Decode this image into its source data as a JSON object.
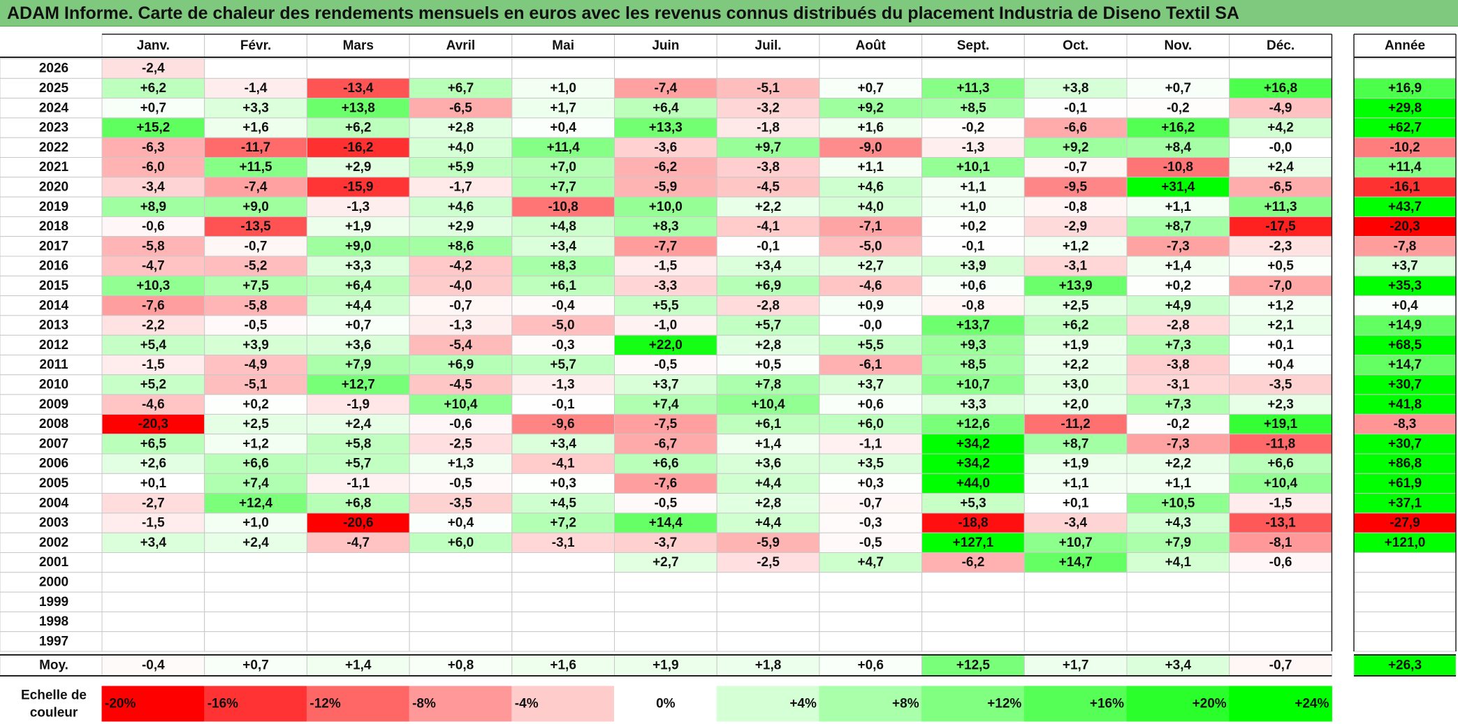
{
  "title": "ADAM Informe. Carte de chaleur des rendements mensuels en euros avec les revenus connus distribués du placement Industria de Diseno Textil SA",
  "colors": {
    "negative_max": "#ff0000",
    "neutral": "#ffffff",
    "positive_max": "#00ff00",
    "title_bg": "#7fc97f"
  },
  "chart_data": {
    "type": "heatmap",
    "title": "ADAM Informe. Carte de chaleur des rendements mensuels en euros avec les revenus connus distribués du placement Industria de Diseno Textil SA",
    "months": [
      "Janv.",
      "Févr.",
      "Mars",
      "Avril",
      "Mai",
      "Juin",
      "Juil.",
      "Août",
      "Sept.",
      "Oct.",
      "Nov.",
      "Déc."
    ],
    "annual_label": "Année",
    "years": [
      "2026",
      "2025",
      "2024",
      "2023",
      "2022",
      "2021",
      "2020",
      "2019",
      "2018",
      "2017",
      "2016",
      "2015",
      "2014",
      "2013",
      "2012",
      "2011",
      "2010",
      "2009",
      "2008",
      "2007",
      "2006",
      "2005",
      "2004",
      "2003",
      "2002",
      "2001",
      "2000",
      "1999",
      "1998",
      "1997"
    ],
    "values": [
      [
        "-2,4",
        "",
        "",
        "",
        "",
        "",
        "",
        "",
        "",
        "",
        "",
        ""
      ],
      [
        "+6,2",
        "-1,4",
        "-13,4",
        "+6,7",
        "+1,0",
        "-7,4",
        "-5,1",
        "+0,7",
        "+11,3",
        "+3,8",
        "+0,7",
        "+16,8"
      ],
      [
        "+0,7",
        "+3,3",
        "+13,8",
        "-6,5",
        "+1,7",
        "+6,4",
        "-3,2",
        "+9,2",
        "+8,5",
        "-0,1",
        "-0,2",
        "-4,9"
      ],
      [
        "+15,2",
        "+1,6",
        "+6,2",
        "+2,8",
        "+0,4",
        "+13,3",
        "-1,8",
        "+1,6",
        "-0,2",
        "-6,6",
        "+16,2",
        "+4,2"
      ],
      [
        "-6,3",
        "-11,7",
        "-16,2",
        "+4,0",
        "+11,4",
        "-3,6",
        "+9,7",
        "-9,0",
        "-1,3",
        "+9,2",
        "+8,4",
        "-0,0"
      ],
      [
        "-6,0",
        "+11,5",
        "+2,9",
        "+5,9",
        "+7,0",
        "-6,2",
        "-3,8",
        "+1,1",
        "+10,1",
        "-0,7",
        "-10,8",
        "+2,4"
      ],
      [
        "-3,4",
        "-7,4",
        "-15,9",
        "-1,7",
        "+7,7",
        "-5,9",
        "-4,5",
        "+4,6",
        "+1,1",
        "-9,5",
        "+31,4",
        "-6,5"
      ],
      [
        "+8,9",
        "+9,0",
        "-1,3",
        "+4,6",
        "-10,8",
        "+10,0",
        "+2,2",
        "+4,0",
        "+1,0",
        "-0,8",
        "+1,1",
        "+11,3"
      ],
      [
        "-0,6",
        "-13,5",
        "+1,9",
        "+2,9",
        "+4,8",
        "+8,3",
        "-4,1",
        "-7,1",
        "+0,2",
        "-2,9",
        "+8,7",
        "-17,5"
      ],
      [
        "-5,8",
        "-0,7",
        "+9,0",
        "+8,6",
        "+3,4",
        "-7,7",
        "-0,1",
        "-5,0",
        "-0,1",
        "+1,2",
        "-7,3",
        "-2,3"
      ],
      [
        "-4,7",
        "-5,2",
        "+3,3",
        "-4,2",
        "+8,3",
        "-1,5",
        "+3,4",
        "+2,7",
        "+3,9",
        "-3,1",
        "+1,4",
        "+0,5"
      ],
      [
        "+10,3",
        "+7,5",
        "+6,4",
        "-4,0",
        "+6,1",
        "-3,3",
        "+6,9",
        "-4,6",
        "+0,6",
        "+13,9",
        "+0,2",
        "-7,0"
      ],
      [
        "-7,6",
        "-5,8",
        "+4,4",
        "-0,7",
        "-0,4",
        "+5,5",
        "-2,8",
        "+0,9",
        "-0,8",
        "+2,5",
        "+4,9",
        "+1,2"
      ],
      [
        "-2,2",
        "-0,5",
        "+0,7",
        "-1,3",
        "-5,0",
        "-1,0",
        "+5,7",
        "-0,0",
        "+13,7",
        "+6,2",
        "-2,8",
        "+2,1"
      ],
      [
        "+5,4",
        "+3,9",
        "+3,6",
        "-5,4",
        "-0,3",
        "+22,0",
        "+2,8",
        "+5,5",
        "+9,3",
        "+1,9",
        "+7,3",
        "+0,1"
      ],
      [
        "-1,5",
        "-4,9",
        "+7,9",
        "+6,9",
        "+5,7",
        "-0,5",
        "+0,5",
        "-6,1",
        "+8,5",
        "+2,2",
        "-3,8",
        "+0,4"
      ],
      [
        "+5,2",
        "-5,1",
        "+12,7",
        "-4,5",
        "-1,3",
        "+3,7",
        "+7,8",
        "+3,7",
        "+10,7",
        "+3,0",
        "-3,1",
        "-3,5"
      ],
      [
        "-4,6",
        "+0,2",
        "-1,9",
        "+10,4",
        "-0,1",
        "+7,4",
        "+10,4",
        "+0,6",
        "+3,3",
        "+2,0",
        "+7,3",
        "+2,3"
      ],
      [
        "-20,3",
        "+2,5",
        "+2,4",
        "-0,6",
        "-9,6",
        "-7,5",
        "+6,1",
        "+6,0",
        "+12,6",
        "-11,2",
        "-0,2",
        "+19,1"
      ],
      [
        "+6,5",
        "+1,2",
        "+5,8",
        "-2,5",
        "+3,4",
        "-6,7",
        "+1,4",
        "-1,1",
        "+34,2",
        "+8,7",
        "-7,3",
        "-11,8"
      ],
      [
        "+2,6",
        "+6,6",
        "+5,7",
        "+1,3",
        "-4,1",
        "+6,6",
        "+3,6",
        "+3,5",
        "+34,2",
        "+1,9",
        "+2,2",
        "+6,6"
      ],
      [
        "+0,1",
        "+7,4",
        "-1,1",
        "-0,5",
        "+0,3",
        "-7,6",
        "+4,4",
        "+0,3",
        "+44,0",
        "+1,1",
        "+1,1",
        "+10,4"
      ],
      [
        "-2,7",
        "+12,4",
        "+6,8",
        "-3,5",
        "+4,5",
        "-0,5",
        "+2,8",
        "-0,7",
        "+5,3",
        "+0,1",
        "+10,5",
        "-1,5"
      ],
      [
        "-1,5",
        "+1,0",
        "-20,6",
        "+0,4",
        "+7,2",
        "+14,4",
        "+4,4",
        "-0,3",
        "-18,8",
        "-3,4",
        "+4,3",
        "-13,1"
      ],
      [
        "+3,4",
        "+2,4",
        "-4,7",
        "+6,0",
        "-3,1",
        "-3,7",
        "-5,9",
        "-0,5",
        "+127,1",
        "+10,7",
        "+7,9",
        "-8,1"
      ],
      [
        "",
        "",
        "",
        "",
        "",
        "+2,7",
        "-2,5",
        "+4,7",
        "-6,2",
        "+14,7",
        "+4,1",
        "-0,6"
      ],
      [
        "",
        "",
        "",
        "",
        "",
        "",
        "",
        "",
        "",
        "",
        "",
        ""
      ],
      [
        "",
        "",
        "",
        "",
        "",
        "",
        "",
        "",
        "",
        "",
        "",
        ""
      ],
      [
        "",
        "",
        "",
        "",
        "",
        "",
        "",
        "",
        "",
        "",
        "",
        ""
      ],
      [
        "",
        "",
        "",
        "",
        "",
        "",
        "",
        "",
        "",
        "",
        "",
        ""
      ]
    ],
    "annual": [
      "",
      "+16,9",
      "+29,8",
      "+62,7",
      "-10,2",
      "+11,4",
      "-16,1",
      "+43,7",
      "-20,3",
      "-7,8",
      "+3,7",
      "+35,3",
      "+0,4",
      "+14,9",
      "+68,5",
      "+14,7",
      "+30,7",
      "+41,8",
      "-8,3",
      "+30,7",
      "+86,8",
      "+61,9",
      "+37,1",
      "-27,9",
      "+121,0",
      "",
      "",
      "",
      "",
      ""
    ],
    "average_label": "Moy.",
    "averages": [
      "-0,4",
      "+0,7",
      "+1,4",
      "+0,8",
      "+1,6",
      "+1,9",
      "+1,8",
      "+0,6",
      "+12,5",
      "+1,7",
      "+3,4",
      "-0,7"
    ],
    "average_annual": "+26,3",
    "scale_label_line1": "Echelle de",
    "scale_label_line2": "couleur",
    "scale": [
      {
        "label": "-20%",
        "value": -20
      },
      {
        "label": "-16%",
        "value": -16
      },
      {
        "label": "-12%",
        "value": -12
      },
      {
        "label": "-8%",
        "value": -8
      },
      {
        "label": "-4%",
        "value": -4
      },
      {
        "label": "0%",
        "value": 0
      },
      {
        "label": "+4%",
        "value": 4
      },
      {
        "label": "+8%",
        "value": 8
      },
      {
        "label": "+12%",
        "value": 12
      },
      {
        "label": "+16%",
        "value": 16
      },
      {
        "label": "+20%",
        "value": 20
      },
      {
        "label": "+24%",
        "value": 24
      }
    ]
  }
}
